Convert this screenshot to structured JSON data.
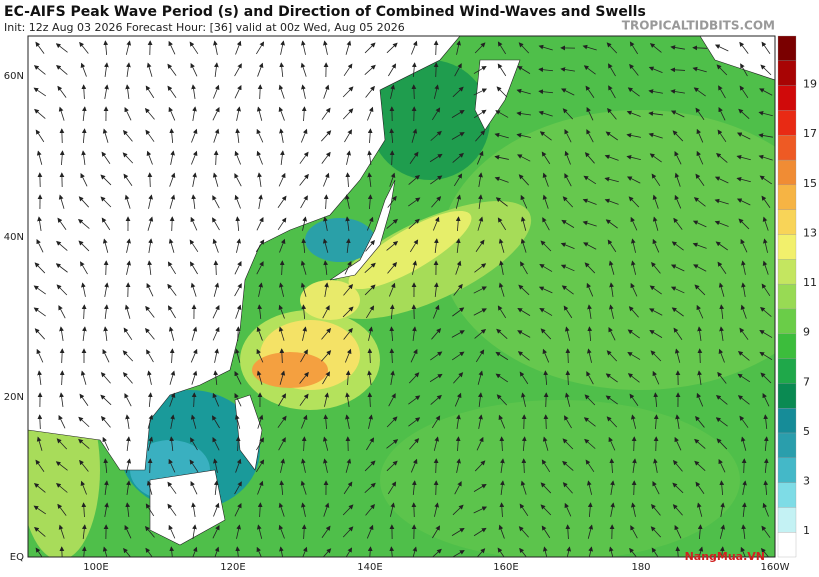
{
  "header": {
    "title": "EC-AIFS Peak Wave Period (s) and Direction of Combined Wind-Waves and Swells",
    "subtitle": "Init: 12z Aug 03 2026   Forecast Hour: [36]   valid at 00z Wed, Aug 05 2026",
    "site": "TROPICALTIDBITS.COM"
  },
  "map": {
    "lat_labels": [
      "60N",
      "40N",
      "20N",
      "EQ"
    ],
    "lon_labels": [
      "100E",
      "120E",
      "140E",
      "160E",
      "180",
      "160W"
    ]
  },
  "colorbar": {
    "labels": [
      "1",
      "3",
      "5",
      "7",
      "9",
      "11",
      "13",
      "15",
      "17",
      "19"
    ]
  },
  "watermark": "NangMua.VN"
}
